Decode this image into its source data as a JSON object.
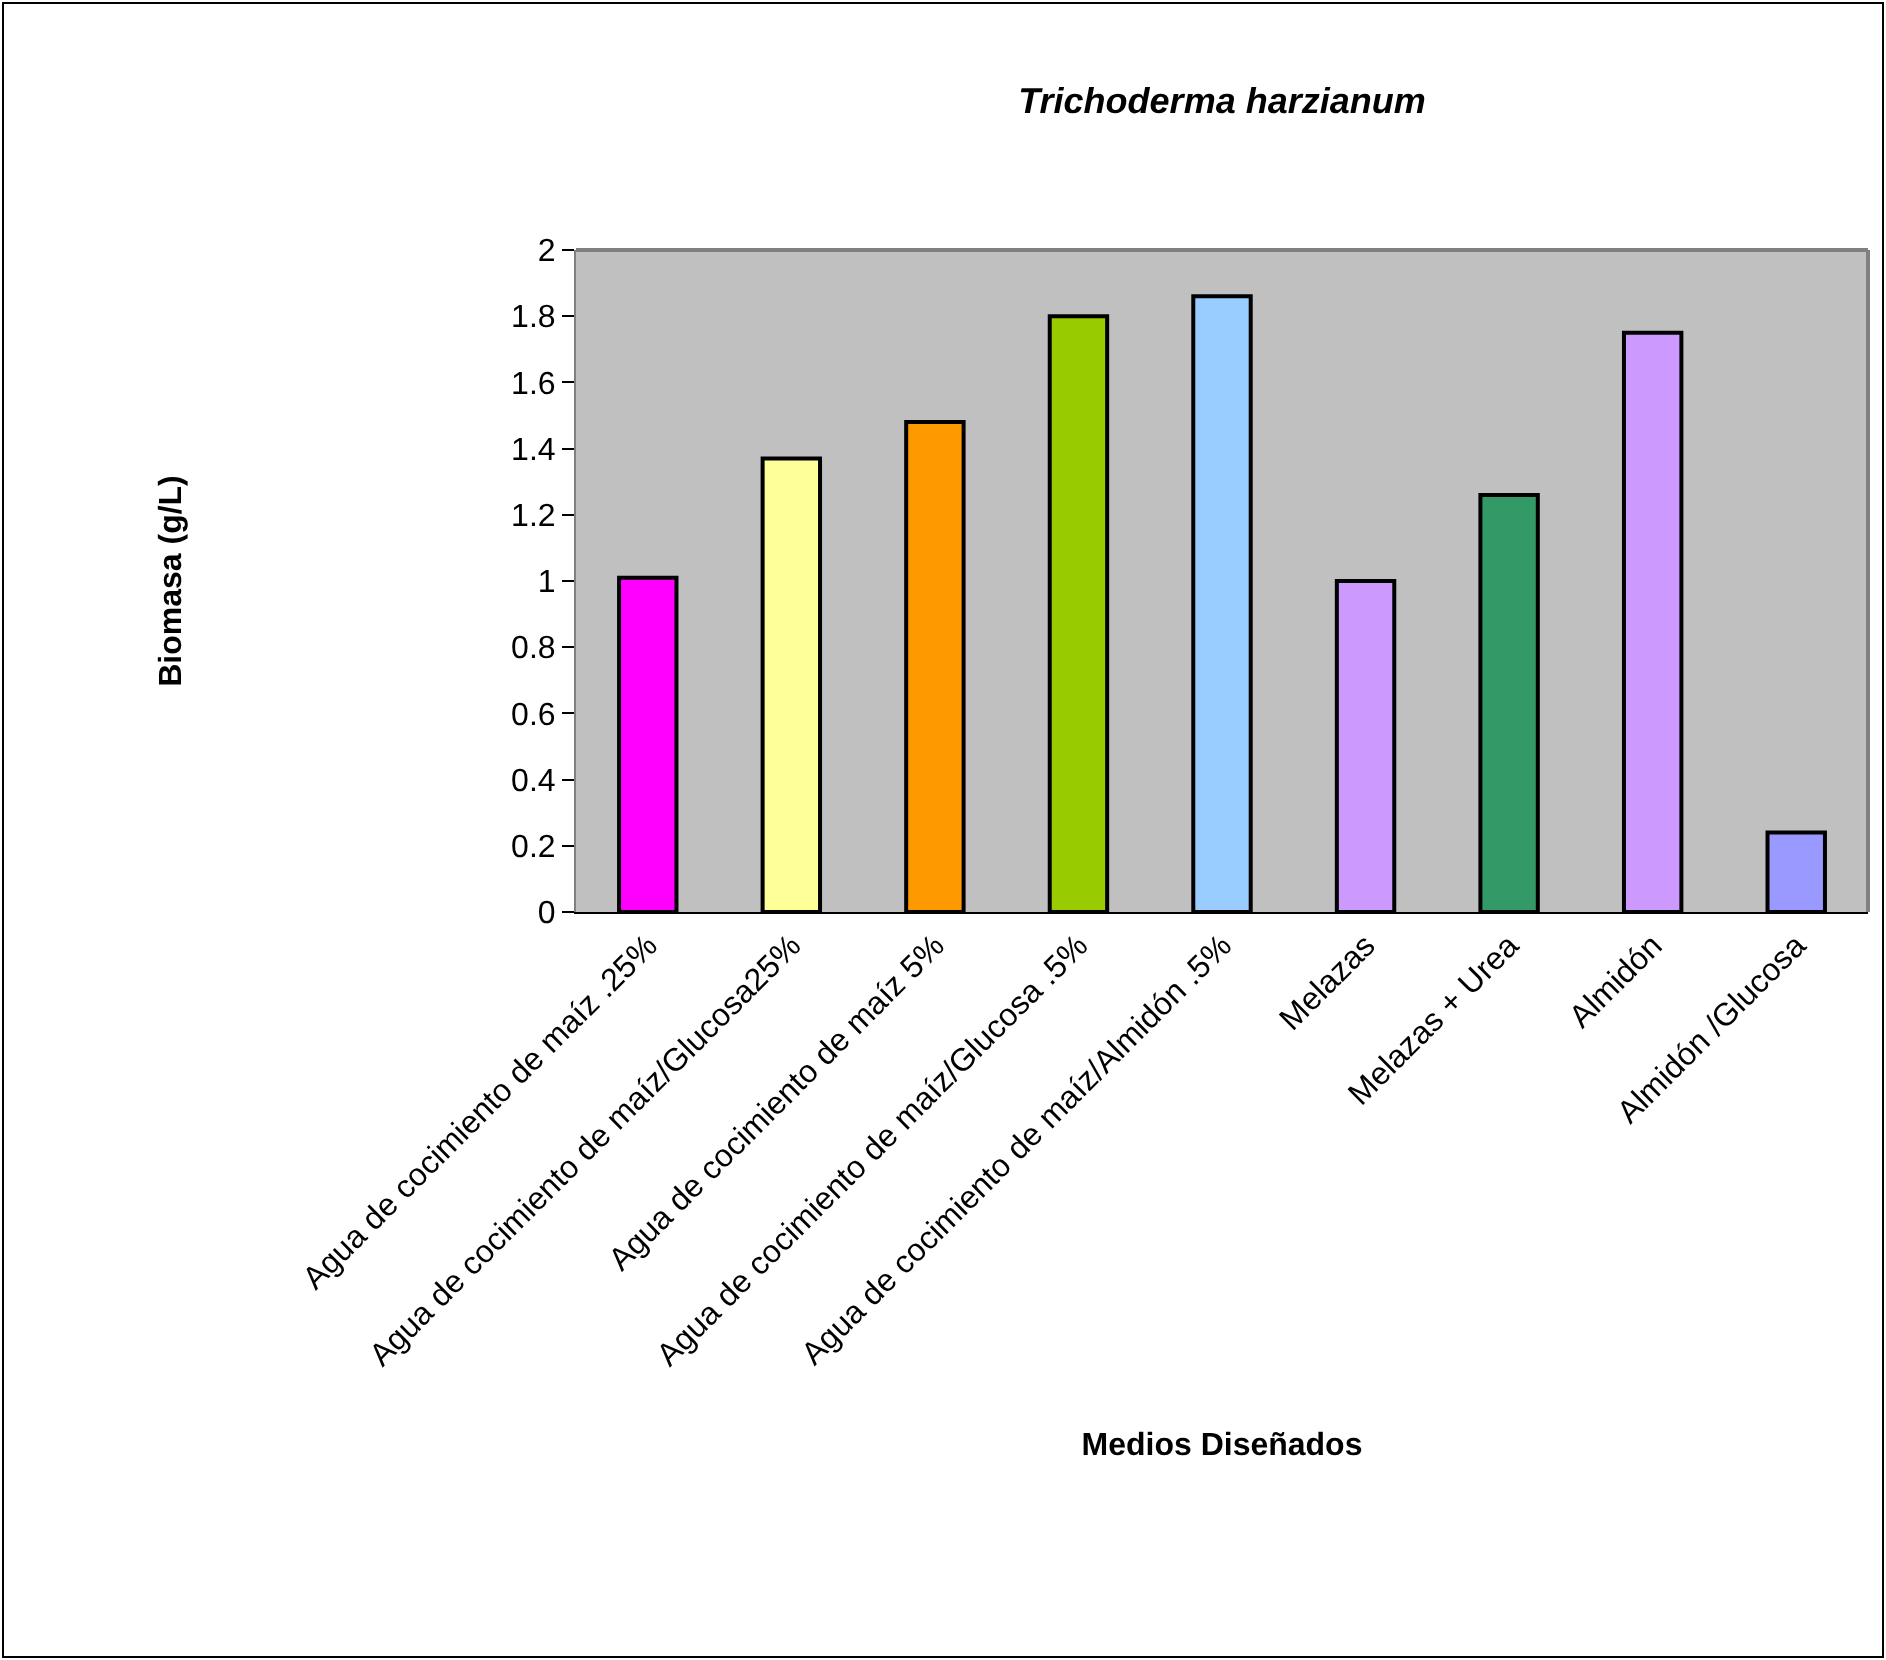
{
  "chart_data": {
    "type": "bar",
    "title": "Trichoderma harzianum",
    "xlabel": "Medios Diseñados",
    "ylabel": "Biomasa (g/L)",
    "categories": [
      "Agua de cocimiento de maíz .25%",
      "Agua de cocimiento de maíz/Glucosa25%",
      "Agua de cocimiento de maíz 5%",
      "Agua de cocimiento de maíz/Glucosa .5%",
      "Agua de cocimiento de maíz/Almidón .5%",
      "Melazas",
      "Melazas + Urea",
      "Almidón",
      "Almidón /Glucosa"
    ],
    "values": [
      1.01,
      1.37,
      1.48,
      1.8,
      1.86,
      1.0,
      1.26,
      1.75,
      0.24
    ],
    "colors": [
      "#ff00ff",
      "#ffff99",
      "#ff9900",
      "#99cc00",
      "#99ccff",
      "#cc99ff",
      "#339966",
      "#cc99ff",
      "#9999ff"
    ],
    "ylim": [
      0,
      2
    ],
    "yticks": [
      0,
      0.2,
      0.4,
      0.6,
      0.8,
      1,
      1.2,
      1.4,
      1.6,
      1.8,
      2
    ]
  }
}
